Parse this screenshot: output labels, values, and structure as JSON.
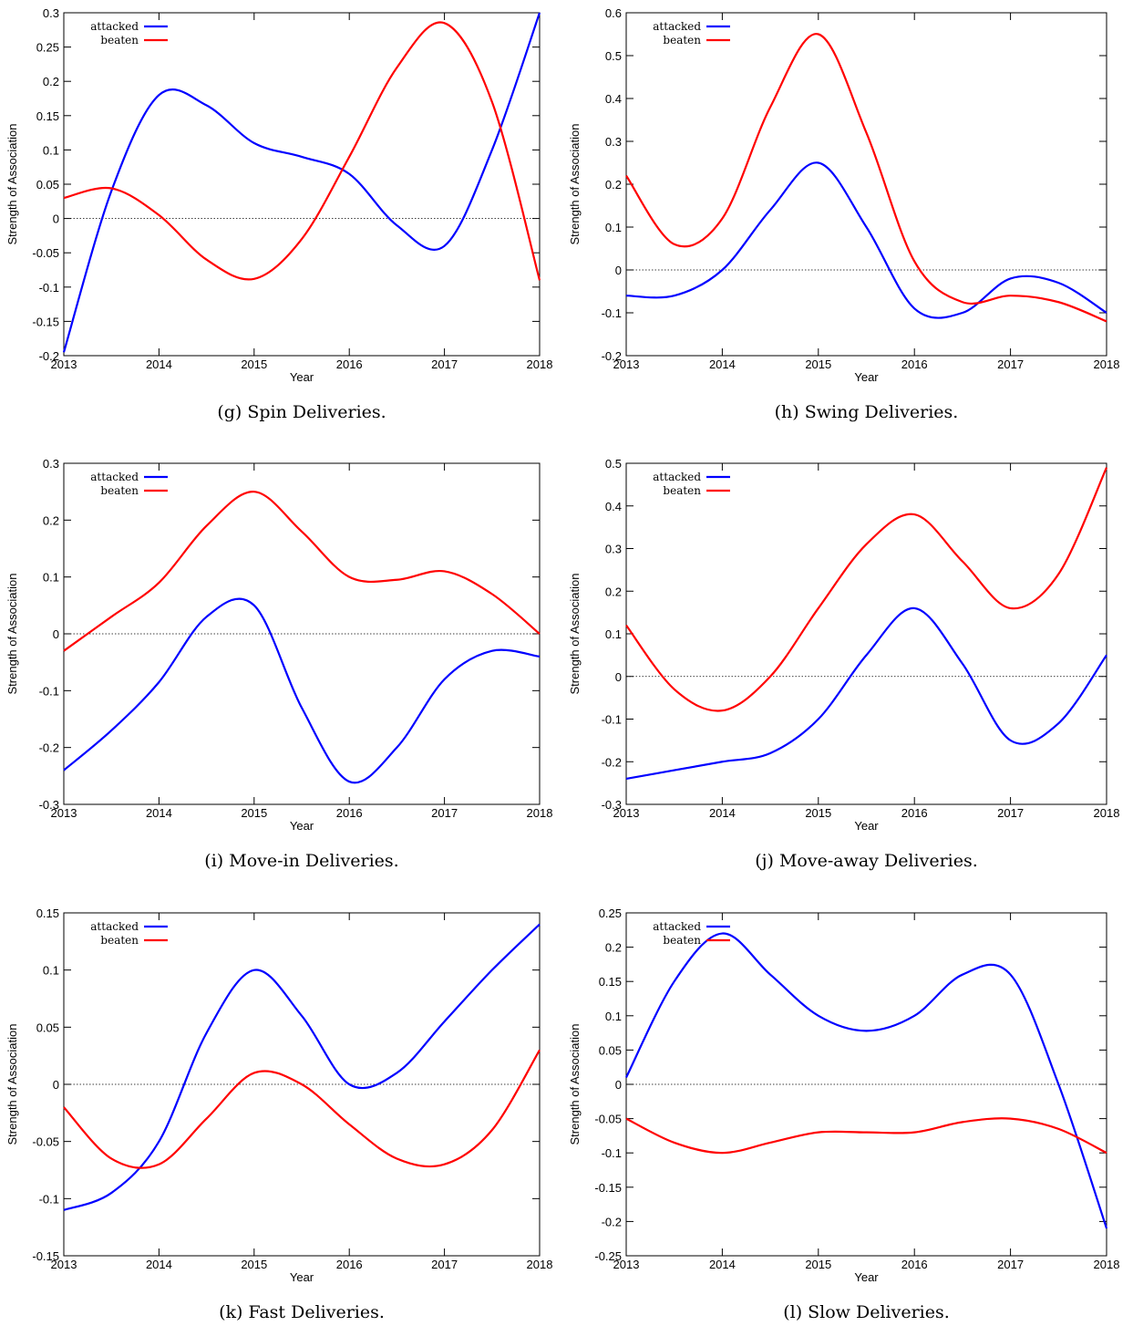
{
  "chart_data": [
    {
      "type": "line",
      "caption": "(g) Spin Deliveries.",
      "x_label": "Year",
      "y_label": "Strength of Association",
      "x": [
        2013,
        2013.5,
        2014,
        2014.5,
        2015,
        2015.5,
        2016,
        2016.5,
        2017,
        2017.5,
        2018
      ],
      "series": [
        {
          "name": "attacked",
          "color": "#0000ff",
          "values": [
            -0.195,
            0.04,
            0.18,
            0.165,
            0.11,
            0.09,
            0.065,
            -0.01,
            -0.04,
            0.1,
            0.3
          ]
        },
        {
          "name": "beaten",
          "color": "#ff0000",
          "values": [
            0.03,
            0.044,
            0.005,
            -0.06,
            -0.088,
            -0.03,
            0.09,
            0.22,
            0.285,
            0.17,
            -0.09
          ]
        }
      ],
      "xlim": [
        2013,
        2018
      ],
      "xticks": [
        2013,
        2014,
        2015,
        2016,
        2017,
        2018
      ],
      "ylim": [
        -0.2,
        0.3
      ],
      "yticks": [
        -0.2,
        -0.15,
        -0.1,
        -0.05,
        0,
        0.05,
        0.1,
        0.15,
        0.2,
        0.25,
        0.3
      ],
      "zero_line": 0,
      "legend": "upper left"
    },
    {
      "type": "line",
      "caption": "(h) Swing Deliveries.",
      "x_label": "Year",
      "y_label": "Strength of Association",
      "x": [
        2013,
        2013.5,
        2014,
        2014.5,
        2015,
        2015.5,
        2016,
        2016.5,
        2017,
        2017.5,
        2018
      ],
      "series": [
        {
          "name": "attacked",
          "color": "#0000ff",
          "values": [
            -0.06,
            -0.06,
            0.0,
            0.14,
            0.25,
            0.1,
            -0.09,
            -0.1,
            -0.02,
            -0.03,
            -0.1
          ]
        },
        {
          "name": "beaten",
          "color": "#ff0000",
          "values": [
            0.22,
            0.06,
            0.12,
            0.38,
            0.55,
            0.32,
            0.02,
            -0.075,
            -0.06,
            -0.075,
            -0.12
          ]
        }
      ],
      "xlim": [
        2013,
        2018
      ],
      "xticks": [
        2013,
        2014,
        2015,
        2016,
        2017,
        2018
      ],
      "ylim": [
        -0.2,
        0.6
      ],
      "yticks": [
        -0.2,
        -0.1,
        0,
        0.1,
        0.2,
        0.3,
        0.4,
        0.5,
        0.6
      ],
      "zero_line": 0,
      "legend": "upper left"
    },
    {
      "type": "line",
      "caption": "(i) Move-in Deliveries.",
      "x_label": "Year",
      "y_label": "Strength of Association",
      "x": [
        2013,
        2013.5,
        2014,
        2014.5,
        2015,
        2015.5,
        2016,
        2016.5,
        2017,
        2017.5,
        2018
      ],
      "series": [
        {
          "name": "attacked",
          "color": "#0000ff",
          "values": [
            -0.24,
            -0.17,
            -0.085,
            0.03,
            0.05,
            -0.13,
            -0.26,
            -0.2,
            -0.08,
            -0.03,
            -0.04
          ]
        },
        {
          "name": "beaten",
          "color": "#ff0000",
          "values": [
            -0.03,
            0.03,
            0.09,
            0.19,
            0.25,
            0.18,
            0.1,
            0.095,
            0.11,
            0.07,
            0.0
          ]
        }
      ],
      "xlim": [
        2013,
        2018
      ],
      "xticks": [
        2013,
        2014,
        2015,
        2016,
        2017,
        2018
      ],
      "ylim": [
        -0.3,
        0.3
      ],
      "yticks": [
        -0.3,
        -0.2,
        -0.1,
        0,
        0.1,
        0.2,
        0.3
      ],
      "zero_line": 0,
      "legend": "upper left"
    },
    {
      "type": "line",
      "caption": "(j) Move-away Deliveries.",
      "x_label": "Year",
      "y_label": "Strength of Association",
      "x": [
        2013,
        2013.5,
        2014,
        2014.5,
        2015,
        2015.5,
        2016,
        2016.5,
        2017,
        2017.5,
        2018
      ],
      "series": [
        {
          "name": "attacked",
          "color": "#0000ff",
          "values": [
            -0.24,
            -0.22,
            -0.2,
            -0.18,
            -0.1,
            0.05,
            0.16,
            0.03,
            -0.15,
            -0.11,
            0.05
          ]
        },
        {
          "name": "beaten",
          "color": "#ff0000",
          "values": [
            0.12,
            -0.03,
            -0.08,
            0.0,
            0.16,
            0.31,
            0.38,
            0.27,
            0.16,
            0.24,
            0.49
          ]
        }
      ],
      "xlim": [
        2013,
        2018
      ],
      "xticks": [
        2013,
        2014,
        2015,
        2016,
        2017,
        2018
      ],
      "ylim": [
        -0.3,
        0.5
      ],
      "yticks": [
        -0.3,
        -0.2,
        -0.1,
        0,
        0.1,
        0.2,
        0.3,
        0.4,
        0.5
      ],
      "zero_line": 0,
      "legend": "upper left"
    },
    {
      "type": "line",
      "caption": "(k) Fast Deliveries.",
      "x_label": "Year",
      "y_label": "Strength of Association",
      "x": [
        2013,
        2013.5,
        2014,
        2014.5,
        2015,
        2015.5,
        2016,
        2016.5,
        2017,
        2017.5,
        2018
      ],
      "series": [
        {
          "name": "attacked",
          "color": "#0000ff",
          "values": [
            -0.11,
            -0.095,
            -0.05,
            0.045,
            0.1,
            0.06,
            0.0,
            0.01,
            0.055,
            0.1,
            0.14
          ]
        },
        {
          "name": "beaten",
          "color": "#ff0000",
          "values": [
            -0.02,
            -0.065,
            -0.07,
            -0.03,
            0.01,
            0.0,
            -0.035,
            -0.065,
            -0.07,
            -0.04,
            0.03
          ]
        }
      ],
      "xlim": [
        2013,
        2018
      ],
      "xticks": [
        2013,
        2014,
        2015,
        2016,
        2017,
        2018
      ],
      "ylim": [
        -0.15,
        0.15
      ],
      "yticks": [
        -0.15,
        -0.1,
        -0.05,
        0,
        0.05,
        0.1,
        0.15
      ],
      "zero_line": 0,
      "legend": "upper left"
    },
    {
      "type": "line",
      "caption": "(l) Slow Deliveries.",
      "x_label": "Year",
      "y_label": "Strength of Association",
      "x": [
        2013,
        2013.5,
        2014,
        2014.5,
        2015,
        2015.5,
        2016,
        2016.5,
        2017,
        2017.5,
        2018
      ],
      "series": [
        {
          "name": "attacked",
          "color": "#0000ff",
          "values": [
            0.01,
            0.15,
            0.22,
            0.16,
            0.1,
            0.078,
            0.1,
            0.16,
            0.16,
            0.0,
            -0.21
          ]
        },
        {
          "name": "beaten",
          "color": "#ff0000",
          "values": [
            -0.05,
            -0.085,
            -0.1,
            -0.085,
            -0.07,
            -0.07,
            -0.07,
            -0.055,
            -0.05,
            -0.065,
            -0.1
          ]
        }
      ],
      "xlim": [
        2013,
        2018
      ],
      "xticks": [
        2013,
        2014,
        2015,
        2016,
        2017,
        2018
      ],
      "ylim": [
        -0.25,
        0.25
      ],
      "yticks": [
        -0.25,
        -0.2,
        -0.15,
        -0.1,
        -0.05,
        0,
        0.05,
        0.1,
        0.15,
        0.2,
        0.25
      ],
      "zero_line": 0,
      "legend": "upper left"
    }
  ]
}
